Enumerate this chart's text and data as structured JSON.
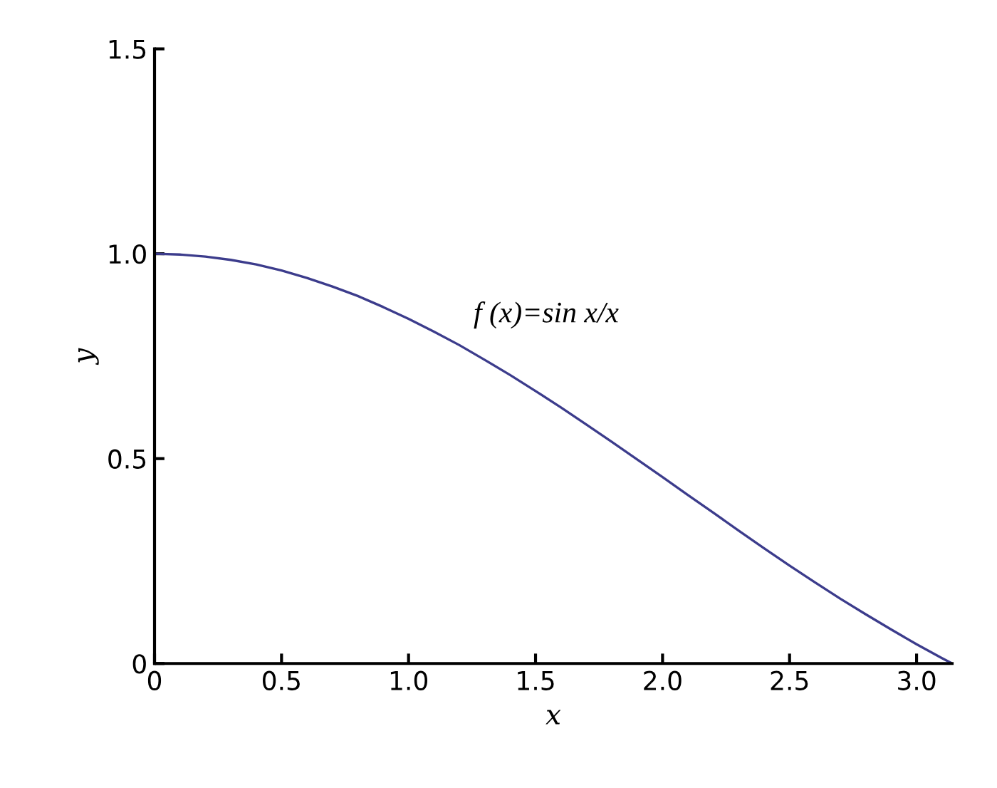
{
  "chart_data": {
    "type": "line",
    "xlabel": "x",
    "ylabel": "y",
    "annotations": [
      "f (x)=sin x/x"
    ],
    "x": [
      0,
      0.1,
      0.2,
      0.3,
      0.4,
      0.5,
      0.6,
      0.7,
      0.8,
      0.9,
      1.0,
      1.1,
      1.2,
      1.3,
      1.4,
      1.5,
      1.6,
      1.7,
      1.8,
      1.9,
      2.0,
      2.1,
      2.2,
      2.3,
      2.4,
      2.5,
      2.6,
      2.7,
      2.8,
      2.9,
      3.0,
      3.1,
      3.14
    ],
    "series": [
      {
        "color": "#3c3c8c",
        "values": [
          1.0,
          0.998,
          0.993,
          0.985,
          0.974,
          0.959,
          0.941,
          0.92,
          0.897,
          0.87,
          0.841,
          0.81,
          0.777,
          0.741,
          0.704,
          0.665,
          0.625,
          0.583,
          0.541,
          0.498,
          0.455,
          0.411,
          0.368,
          0.324,
          0.281,
          0.239,
          0.198,
          0.158,
          0.12,
          0.083,
          0.047,
          0.013,
          0.0
        ]
      }
    ],
    "xlim": [
      0,
      3.14
    ],
    "ylim": [
      0,
      1.5
    ],
    "xticks": [
      0,
      0.5,
      {
        "value": 1,
        "label": "1.0"
      },
      1.5,
      {
        "value": 2,
        "label": "2.0"
      },
      2.5,
      {
        "value": 3,
        "label": "3.0"
      }
    ],
    "yticks": [
      0,
      0.5,
      {
        "value": 1,
        "label": "1.0"
      },
      1.5
    ],
    "grid": false,
    "legend": false,
    "marker": "none",
    "line_style": "solid"
  }
}
